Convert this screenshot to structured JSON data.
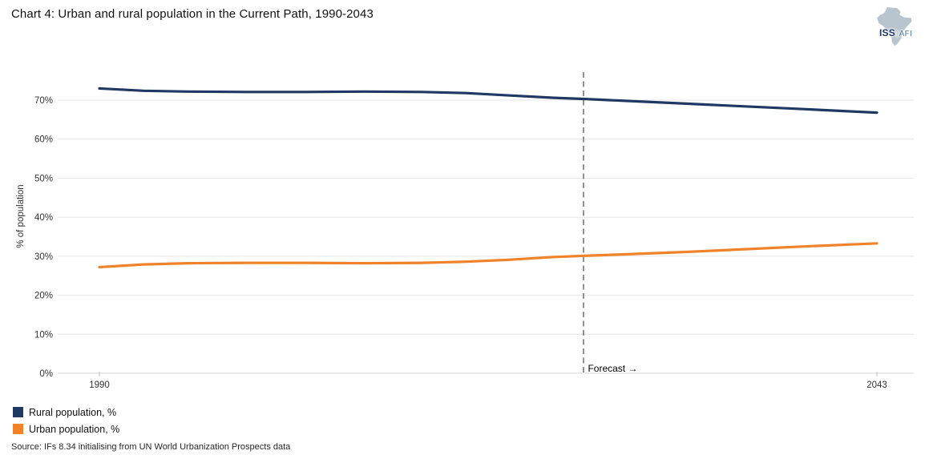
{
  "title": "Chart 4: Urban and rural population in the Current Path, 1990-2043",
  "logo": {
    "iss": "ISS",
    "separator": "|",
    "afi": "AFI"
  },
  "source": "Source: IFs 8.34 initialising from UN World Urbanization Prospects data",
  "legend": {
    "items": [
      {
        "label": "Rural population, %",
        "color": "#1F3864"
      },
      {
        "label": "Urban population, %",
        "color": "#F0832A"
      }
    ]
  },
  "chart_data": {
    "type": "line",
    "title": "Chart 4: Urban and rural population in the Current Path, 1990-2043",
    "xlabel": "",
    "ylabel": "% of population",
    "xlim": [
      1990,
      2043
    ],
    "ylim": [
      0,
      77
    ],
    "grid": "horizontal",
    "legend_position": "bottom-left",
    "x_ticks": [
      {
        "value": 1990,
        "label": "1990"
      },
      {
        "value": 2043,
        "label": "2043"
      }
    ],
    "y_ticks": [
      {
        "value": 0,
        "label": "0%"
      },
      {
        "value": 10,
        "label": "10%"
      },
      {
        "value": 20,
        "label": "20%"
      },
      {
        "value": 30,
        "label": "30%"
      },
      {
        "value": 40,
        "label": "40%"
      },
      {
        "value": 50,
        "label": "50%"
      },
      {
        "value": 60,
        "label": "60%"
      },
      {
        "value": 70,
        "label": "70%"
      }
    ],
    "forecast": {
      "year": 2023,
      "label": "Forecast →"
    },
    "x": [
      1990,
      1993,
      1996,
      2000,
      2004,
      2008,
      2012,
      2015,
      2018,
      2021,
      2023,
      2026,
      2030,
      2034,
      2038,
      2043
    ],
    "series": [
      {
        "name": "Rural population, %",
        "color": "#1F3864",
        "values": [
          73.0,
          72.4,
          72.2,
          72.1,
          72.1,
          72.2,
          72.1,
          71.8,
          71.2,
          70.6,
          70.3,
          69.8,
          69.1,
          68.4,
          67.7,
          66.8
        ]
      },
      {
        "name": "Urban population, %",
        "color": "#F0832A",
        "values": [
          27.2,
          27.9,
          28.2,
          28.3,
          28.3,
          28.2,
          28.3,
          28.6,
          29.1,
          29.8,
          30.1,
          30.5,
          31.1,
          31.8,
          32.5,
          33.3
        ]
      }
    ],
    "colors": {
      "gridline": "#E4E4E4",
      "baseline": "#D6D6D6",
      "forecast_line": "#7F7F7F"
    }
  }
}
